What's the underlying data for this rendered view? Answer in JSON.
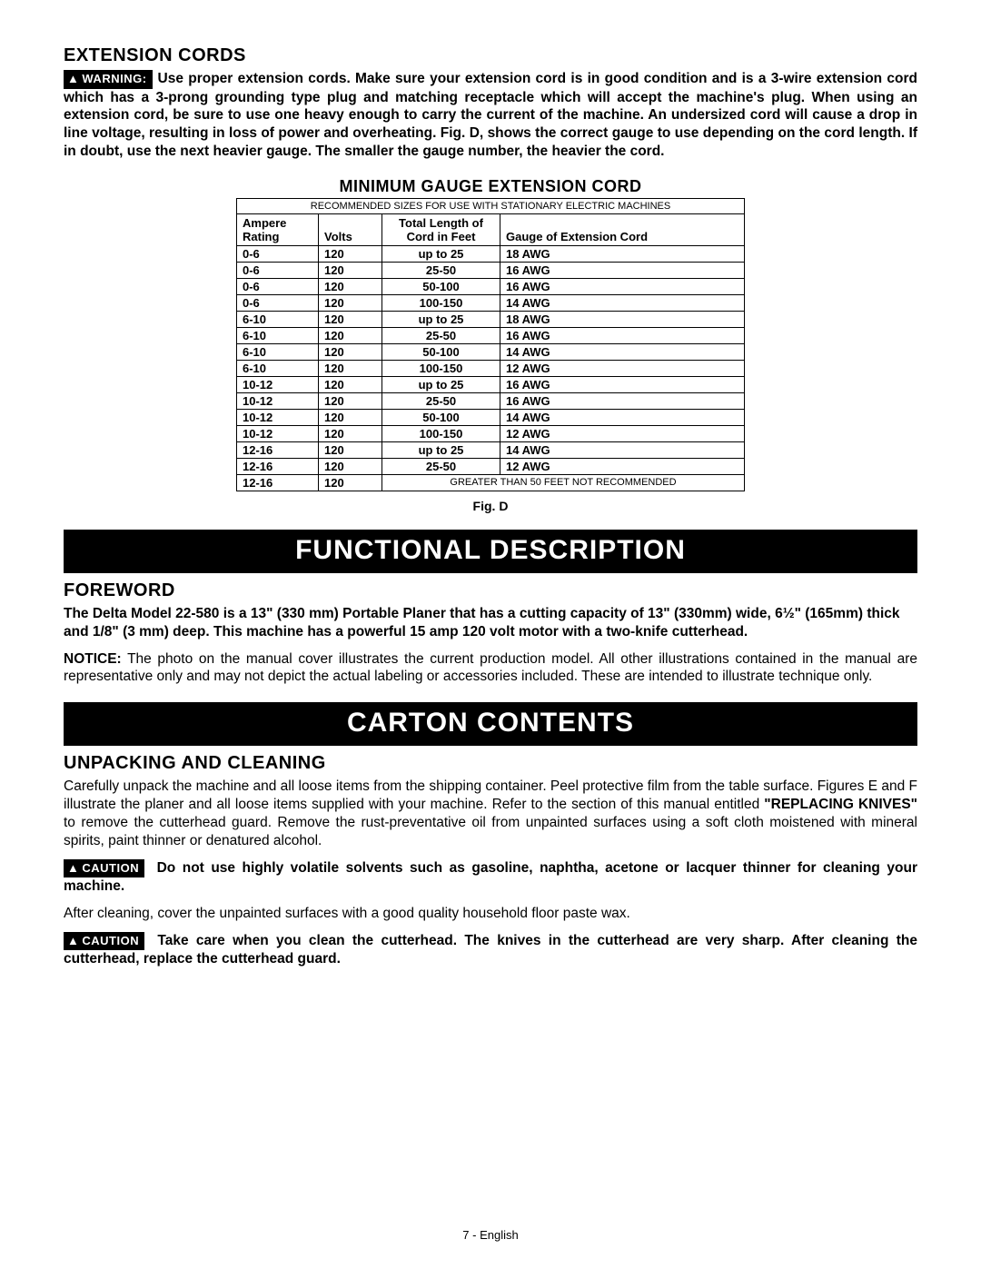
{
  "extension_cords": {
    "heading": "EXTENSION CORDS",
    "warning_label": "WARNING:",
    "warning_text": "Use proper extension cords. Make sure your extension cord is in good condition and is a 3-wire extension cord which has a 3-prong grounding type plug and matching receptacle which will accept the machine's plug. When using an extension cord, be sure to use one heavy enough to carry the current of the machine. An undersized cord will cause a drop in line voltage, resulting in loss of power and overheating. Fig. D, shows the correct gauge to use depending on the cord length. If in doubt, use the next heavier gauge. The smaller the gauge number, the heavier the cord."
  },
  "gauge_table": {
    "title": "MINIMUM GAUGE EXTENSION CORD",
    "subtitle": "RECOMMENDED SIZES FOR USE WITH STATIONARY ELECTRIC MACHINES",
    "col1": "Ampere Rating",
    "col2": "Volts",
    "col3": "Total Length of Cord in Feet",
    "col4": "Gauge of Extension Cord",
    "rows": [
      [
        "0-6",
        "120",
        "up to 25",
        "18 AWG"
      ],
      [
        "0-6",
        "120",
        "25-50",
        "16 AWG"
      ],
      [
        "0-6",
        "120",
        "50-100",
        "16 AWG"
      ],
      [
        "0-6",
        "120",
        "100-150",
        "14 AWG"
      ],
      [
        "6-10",
        "120",
        "up to 25",
        "18 AWG"
      ],
      [
        "6-10",
        "120",
        "25-50",
        "16 AWG"
      ],
      [
        "6-10",
        "120",
        "50-100",
        "14 AWG"
      ],
      [
        "6-10",
        "120",
        "100-150",
        "12 AWG"
      ],
      [
        "10-12",
        "120",
        "up to 25",
        "16 AWG"
      ],
      [
        "10-12",
        "120",
        "25-50",
        "16 AWG"
      ],
      [
        "10-12",
        "120",
        "50-100",
        "14 AWG"
      ],
      [
        "10-12",
        "120",
        "100-150",
        "12 AWG"
      ],
      [
        "12-16",
        "120",
        "up to 25",
        "14 AWG"
      ],
      [
        "12-16",
        "120",
        "25-50",
        "12 AWG"
      ]
    ],
    "last_row": {
      "amps": "12-16",
      "volts": "120",
      "note": "GREATER THAN 50 FEET NOT RECOMMENDED"
    },
    "caption": "Fig. D"
  },
  "functional": {
    "banner": "FUNCTIONAL DESCRIPTION",
    "heading": "FOREWORD",
    "p1": "The Delta Model 22-580 is a 13\" (330 mm) Portable Planer that has a cutting capacity of 13\" (330mm) wide, 6½\" (165mm) thick and 1/8\" (3 mm) deep. This machine has a powerful 15 amp 120 volt motor with a two-knife cutterhead.",
    "notice_label": "NOTICE:",
    "notice_text": " The photo on the manual cover illustrates the current production model. All other illustrations contained in the manual are representative only and may not depict the actual labeling or accessories included. These are intended to illustrate technique only."
  },
  "carton": {
    "banner": "CARTON CONTENTS",
    "heading": "UNPACKING AND CLEANING",
    "p1_a": "Carefully unpack the machine and all loose items from the shipping container. Peel protective film from the table surface. Figures E and F illustrate the planer and all loose items supplied with your machine. Refer to the section of this manual entitled ",
    "p1_bold": "\"REPLACING KNIVES\"",
    "p1_b": " to remove the cutterhead guard. Remove the rust-preventative oil from unpainted surfaces using a soft cloth moistened with mineral spirits, paint thinner or denatured alcohol.",
    "caution_label": "CAUTION",
    "caution1_text": " Do not use highly volatile solvents such as gasoline, naphtha, acetone or lacquer thinner for cleaning your machine.",
    "p2": "After cleaning, cover the unpainted surfaces with a good quality household floor paste wax.",
    "caution2_text": " Take care when you clean the cutterhead. The knives in the cutterhead are very sharp. After cleaning the cutterhead, replace the cutterhead guard."
  },
  "footer": {
    "page": "7",
    "sep": " - ",
    "lang": "English"
  },
  "colors": {
    "bg": "#ffffff",
    "text": "#000000",
    "banner_bg": "#000000",
    "banner_text": "#ffffff"
  }
}
